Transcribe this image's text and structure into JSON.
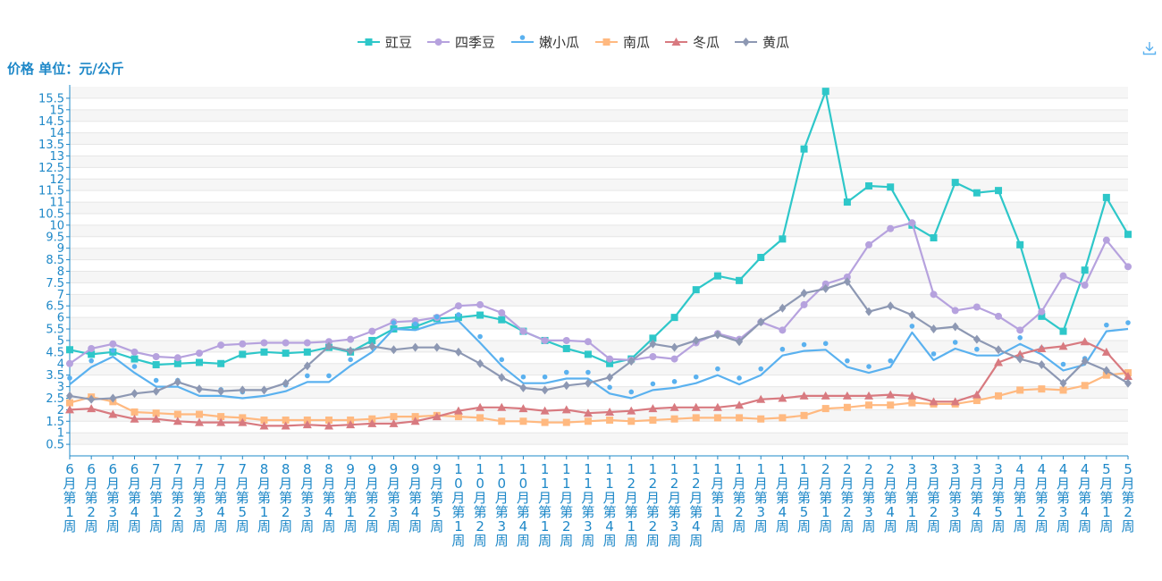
{
  "unit_label": "价格 单位：元/公斤",
  "download_icon": "download-icon",
  "chart_data": {
    "type": "line",
    "title": "",
    "ylabel": "价格 单位：元/公斤",
    "ylim": [
      0,
      16
    ],
    "yticks": [
      0.5,
      1,
      1.5,
      2,
      2.5,
      3,
      3.5,
      4,
      4.5,
      5,
      5.5,
      6,
      6.5,
      7,
      7.5,
      8,
      8.5,
      9,
      9.5,
      10,
      10.5,
      11,
      11.5,
      12,
      12.5,
      13,
      13.5,
      14,
      14.5,
      15,
      15.5
    ],
    "grid": true,
    "legend_position": "top-center",
    "categories": [
      "6月第1周",
      "6月第2周",
      "6月第3周",
      "6月第4周",
      "7月第1周",
      "7月第2周",
      "7月第3周",
      "7月第4周",
      "7月第5周",
      "8月第1周",
      "8月第2周",
      "8月第3周",
      "8月第4周",
      "9月第1周",
      "9月第2周",
      "9月第3周",
      "9月第4周",
      "9月第5周",
      "10月第1周",
      "10月第2周",
      "10月第3周",
      "10月第4周",
      "11月第1周",
      "11月第2周",
      "11月第3周",
      "11月第4周",
      "12月第1周",
      "12月第2周",
      "12月第3周",
      "12月第4周",
      "1月第1周",
      "1月第2周",
      "1月第3周",
      "1月第4周",
      "1月第5周",
      "2月第1周",
      "2月第2周",
      "2月第3周",
      "2月第4周",
      "3月第1周",
      "3月第2周",
      "3月第3周",
      "3月第4周",
      "3月第5周",
      "4月第1周",
      "4月第2周",
      "4月第3周",
      "4月第4周",
      "5月第1周",
      "5月第2周"
    ],
    "series": [
      {
        "name": "豇豆",
        "color": "#2ec7c9",
        "symbol": "square",
        "values": [
          4.6,
          4.4,
          4.5,
          4.2,
          3.95,
          4.0,
          4.05,
          4.0,
          4.4,
          4.5,
          4.45,
          4.5,
          4.7,
          4.5,
          5.0,
          5.5,
          5.6,
          5.95,
          6.0,
          6.1,
          5.9,
          5.4,
          5.0,
          4.65,
          4.4,
          4.0,
          4.2,
          5.1,
          6.0,
          7.2,
          7.8,
          7.6,
          8.6,
          9.4,
          13.3,
          15.8,
          11.0,
          11.7,
          11.65,
          10.0,
          9.45,
          11.85,
          11.4,
          11.5,
          9.15,
          6.05,
          5.4,
          8.05,
          11.2,
          9.6
        ]
      },
      {
        "name": "四季豆",
        "color": "#b6a2de",
        "symbol": "circle",
        "values": [
          4.0,
          4.65,
          4.85,
          4.5,
          4.3,
          4.25,
          4.45,
          4.8,
          4.85,
          4.9,
          4.9,
          4.9,
          4.95,
          5.05,
          5.4,
          5.8,
          5.85,
          6.0,
          6.5,
          6.55,
          6.2,
          5.4,
          5.0,
          5.0,
          4.95,
          4.2,
          4.15,
          4.3,
          4.2,
          4.9,
          5.3,
          5.05,
          5.8,
          5.45,
          6.55,
          7.45,
          7.75,
          9.15,
          9.85,
          10.1,
          7.0,
          6.3,
          6.45,
          6.05,
          5.45,
          6.25,
          7.8,
          7.4,
          9.35,
          8.2
        ]
      },
      {
        "name": "嫩小瓜",
        "color": "#5ab1ef",
        "symbol": "pin",
        "values": [
          3.1,
          3.85,
          4.3,
          3.6,
          3.0,
          3.0,
          2.6,
          2.6,
          2.5,
          2.6,
          2.8,
          3.2,
          3.2,
          3.9,
          4.5,
          5.5,
          5.45,
          5.75,
          5.85,
          4.9,
          3.9,
          3.15,
          3.15,
          3.35,
          3.35,
          2.7,
          2.5,
          2.85,
          2.95,
          3.15,
          3.5,
          3.1,
          3.5,
          4.35,
          4.55,
          4.6,
          3.85,
          3.6,
          3.85,
          5.35,
          4.15,
          4.65,
          4.35,
          4.35,
          4.85,
          4.4,
          3.7,
          3.95,
          5.4,
          5.5
        ]
      },
      {
        "name": "南瓜",
        "color": "#ffb980",
        "symbol": "square",
        "values": [
          2.3,
          2.55,
          2.35,
          1.9,
          1.85,
          1.8,
          1.8,
          1.7,
          1.65,
          1.55,
          1.55,
          1.55,
          1.55,
          1.55,
          1.6,
          1.7,
          1.7,
          1.75,
          1.7,
          1.65,
          1.5,
          1.5,
          1.45,
          1.45,
          1.5,
          1.55,
          1.5,
          1.55,
          1.6,
          1.65,
          1.65,
          1.65,
          1.6,
          1.65,
          1.75,
          2.05,
          2.1,
          2.2,
          2.2,
          2.3,
          2.25,
          2.25,
          2.4,
          2.6,
          2.85,
          2.9,
          2.85,
          3.05,
          3.5,
          3.6
        ]
      },
      {
        "name": "冬瓜",
        "color": "#d87a80",
        "symbol": "triangle",
        "values": [
          2.0,
          2.05,
          1.8,
          1.6,
          1.6,
          1.5,
          1.45,
          1.45,
          1.45,
          1.3,
          1.3,
          1.35,
          1.3,
          1.35,
          1.4,
          1.4,
          1.5,
          1.7,
          1.95,
          2.1,
          2.1,
          2.05,
          1.95,
          2.0,
          1.85,
          1.9,
          1.95,
          2.05,
          2.1,
          2.1,
          2.1,
          2.2,
          2.45,
          2.5,
          2.6,
          2.6,
          2.6,
          2.6,
          2.65,
          2.6,
          2.35,
          2.35,
          2.65,
          4.05,
          4.4,
          4.65,
          4.75,
          4.95,
          4.5,
          3.45
        ]
      },
      {
        "name": "黄瓜",
        "color": "#8d98b3",
        "symbol": "diamond",
        "values": [
          2.6,
          2.45,
          2.5,
          2.7,
          2.8,
          3.2,
          2.9,
          2.8,
          2.85,
          2.85,
          3.15,
          3.9,
          4.75,
          4.55,
          4.75,
          4.6,
          4.7,
          4.7,
          4.5,
          4.0,
          3.4,
          2.95,
          2.85,
          3.05,
          3.15,
          3.4,
          4.1,
          4.85,
          4.7,
          5.0,
          5.25,
          4.95,
          5.8,
          6.4,
          7.05,
          7.25,
          7.55,
          6.25,
          6.5,
          6.1,
          5.5,
          5.6,
          5.05,
          4.6,
          4.2,
          3.95,
          3.15,
          4.1,
          3.7,
          3.15
        ]
      }
    ]
  }
}
